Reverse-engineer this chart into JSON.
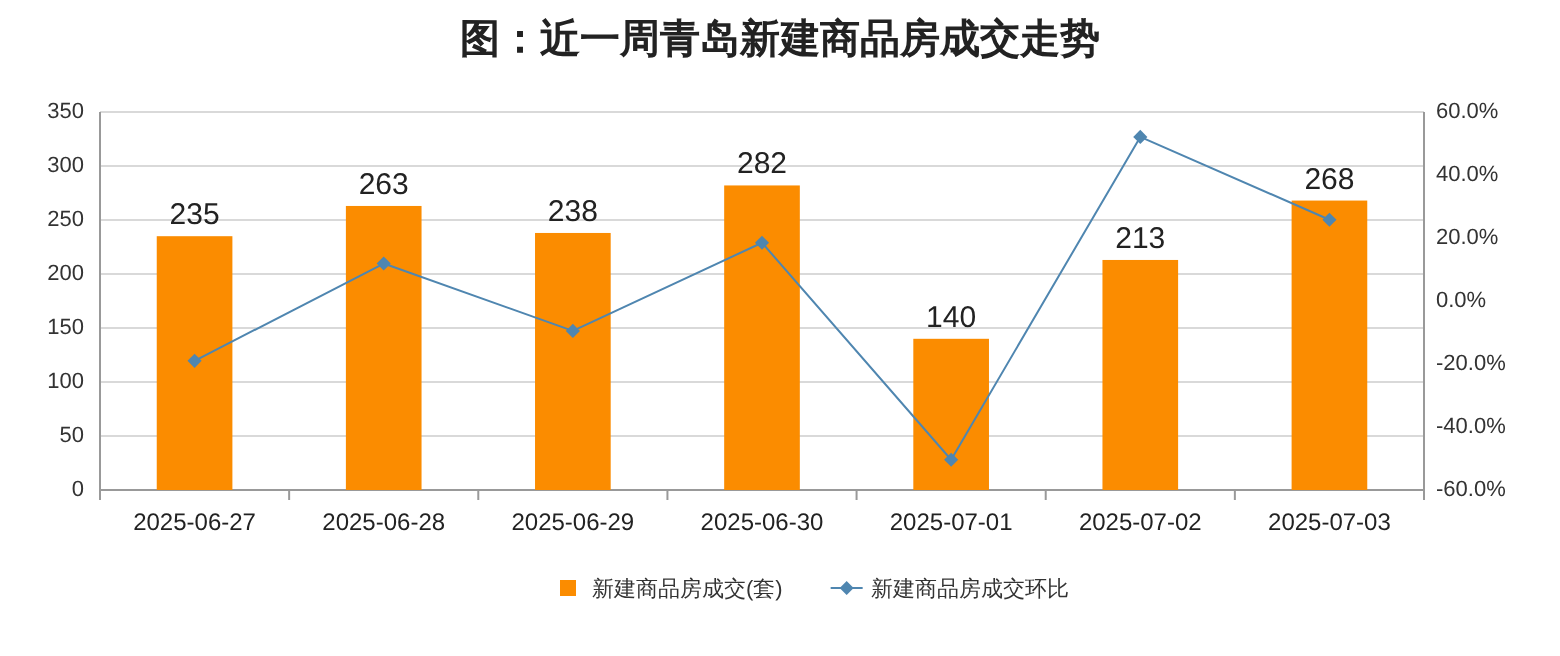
{
  "chart_data": {
    "type": "bar",
    "title": "图：近一周青岛新建商品房成交走势",
    "categories": [
      "2025-06-27",
      "2025-06-28",
      "2025-06-29",
      "2025-06-30",
      "2025-07-01",
      "2025-07-02",
      "2025-07-03"
    ],
    "series": [
      {
        "name": "新建商品房成交(套)",
        "color": "#fb8c00",
        "values": [
          235,
          263,
          238,
          282,
          140,
          213,
          268
        ],
        "value_labels": [
          "235",
          "263",
          "238",
          "282",
          "140",
          "213",
          "268"
        ]
      },
      {
        "name": "新建商品房成交环比",
        "type": "line",
        "axis": "y2",
        "color": "#4f86b0",
        "marker": "diamond",
        "values": [
          -19,
          11.9,
          -9.5,
          18.5,
          -50.4,
          52.1,
          25.8
        ]
      }
    ],
    "ylim": [
      0,
      350
    ],
    "yticks": [
      0,
      50,
      100,
      150,
      200,
      250,
      300,
      350
    ],
    "y2lim": [
      -60,
      60
    ],
    "y2ticks": [
      {
        "value": -60,
        "label": "-60.0%"
      },
      {
        "value": -40,
        "label": "-40.0%"
      },
      {
        "value": -20,
        "label": "-20.0%"
      },
      {
        "value": 0,
        "label": "0.0%"
      },
      {
        "value": 20,
        "label": "20.0%"
      },
      {
        "value": 40,
        "label": "40.0%"
      },
      {
        "value": 60,
        "label": "60.0%"
      }
    ],
    "grid": "y",
    "legend": "bottom"
  }
}
